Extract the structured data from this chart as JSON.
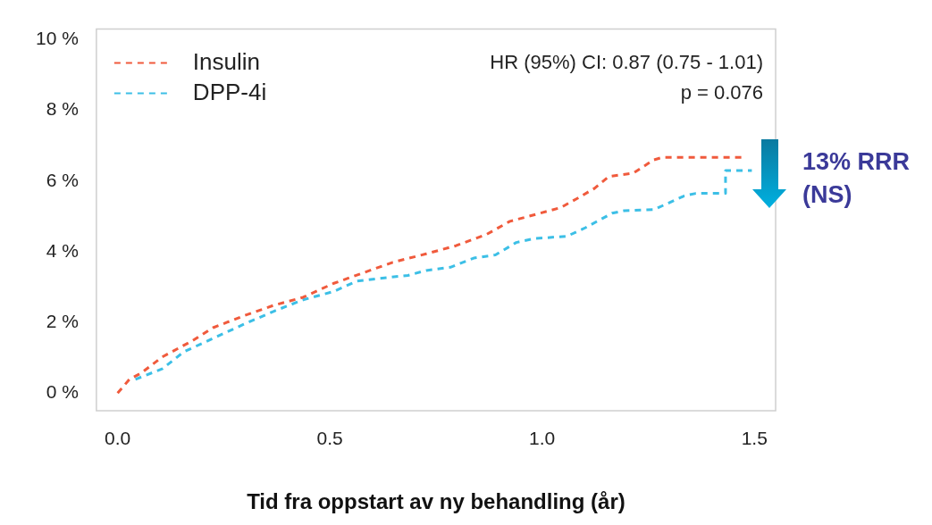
{
  "chart_data": {
    "type": "line",
    "xlabel": "Tid fra oppstart av ny behandling (år)",
    "annotations": [
      "HR (95%) CI: 0.87 (0.75 - 1.01)",
      "p = 0.076",
      "13% RRR (NS)"
    ],
    "series": [
      {
        "name": "Insulin",
        "color": "#f05a3c",
        "x": [
          0,
          0.028,
          0.055,
          0.105,
          0.176,
          0.225,
          0.296,
          0.367,
          0.437,
          0.508,
          0.578,
          0.648,
          0.727,
          0.797,
          0.869,
          0.924,
          0.974,
          1.044,
          1.08,
          1.123,
          1.157,
          1.214,
          1.263,
          1.284,
          1.475
        ],
        "values": [
          0,
          0.39,
          0.56,
          1.02,
          1.48,
          1.85,
          2.18,
          2.48,
          2.71,
          3.1,
          3.4,
          3.7,
          3.94,
          4.17,
          4.49,
          4.86,
          5.02,
          5.25,
          5.49,
          5.79,
          6.13,
          6.22,
          6.6,
          6.67,
          6.67
        ]
      },
      {
        "name": "DPP-4i",
        "color": "#3cbfe6",
        "x": [
          0.042,
          0.106,
          0.155,
          0.225,
          0.296,
          0.367,
          0.437,
          0.508,
          0.564,
          0.614,
          0.684,
          0.727,
          0.784,
          0.839,
          0.89,
          0.939,
          0.981,
          1.059,
          1.102,
          1.165,
          1.193,
          1.263,
          1.335,
          1.362,
          1.432,
          1.432,
          1.494
        ],
        "values": [
          0.39,
          0.69,
          1.16,
          1.55,
          1.94,
          2.31,
          2.64,
          2.87,
          3.17,
          3.24,
          3.33,
          3.47,
          3.56,
          3.82,
          3.91,
          4.26,
          4.37,
          4.44,
          4.68,
          5.09,
          5.16,
          5.19,
          5.58,
          5.65,
          5.65,
          6.3,
          6.3
        ]
      }
    ],
    "xlim": [
      -0.05,
      1.55
    ],
    "xticks": [
      {
        "value": 0,
        "label": "0.0"
      },
      0.5,
      {
        "value": 1,
        "label": "1.0"
      },
      1.5
    ],
    "ylim": [
      -0.5,
      10.3
    ],
    "yticks": [
      {
        "value": 0,
        "label": "0 %"
      },
      {
        "value": 2,
        "label": "2 %"
      },
      {
        "value": 4,
        "label": "4 %"
      },
      {
        "value": 6,
        "label": "6 %"
      },
      {
        "value": 8,
        "label": "8 %"
      },
      {
        "value": 10,
        "label": "10 %"
      }
    ],
    "grid": false,
    "legend": "top left",
    "marker": "none",
    "line_style": "dashed"
  }
}
